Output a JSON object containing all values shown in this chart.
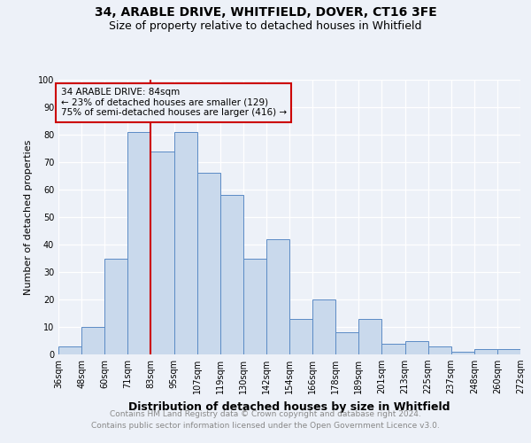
{
  "title1": "34, ARABLE DRIVE, WHITFIELD, DOVER, CT16 3FE",
  "title2": "Size of property relative to detached houses in Whitfield",
  "xlabel": "Distribution of detached houses by size in Whitfield",
  "ylabel": "Number of detached properties",
  "footnote1": "Contains HM Land Registry data © Crown copyright and database right 2024.",
  "footnote2": "Contains public sector information licensed under the Open Government Licence v3.0.",
  "tick_labels": [
    "36sqm",
    "48sqm",
    "60sqm",
    "71sqm",
    "83sqm",
    "95sqm",
    "107sqm",
    "119sqm",
    "130sqm",
    "142sqm",
    "154sqm",
    "166sqm",
    "178sqm",
    "189sqm",
    "201sqm",
    "213sqm",
    "225sqm",
    "237sqm",
    "248sqm",
    "260sqm",
    "272sqm"
  ],
  "bar_heights": [
    3,
    10,
    35,
    81,
    74,
    81,
    66,
    58,
    35,
    42,
    13,
    20,
    8,
    13,
    4,
    5,
    3,
    1,
    2,
    2
  ],
  "bar_color": "#c9d9ec",
  "bar_edge_color": "#5b8bc5",
  "vline_color": "#cc0000",
  "vline_x": 4,
  "annotation_text": "34 ARABLE DRIVE: 84sqm\n← 23% of detached houses are smaller (129)\n75% of semi-detached houses are larger (416) →",
  "annotation_box_edgecolor": "#cc0000",
  "ylim": [
    0,
    100
  ],
  "yticks": [
    0,
    10,
    20,
    30,
    40,
    50,
    60,
    70,
    80,
    90,
    100
  ],
  "title1_fontsize": 10,
  "title2_fontsize": 9,
  "xlabel_fontsize": 9,
  "ylabel_fontsize": 8,
  "footnote_fontsize": 6.5,
  "tick_fontsize": 7,
  "annotation_fontsize": 7.5,
  "background_color": "#edf1f8"
}
